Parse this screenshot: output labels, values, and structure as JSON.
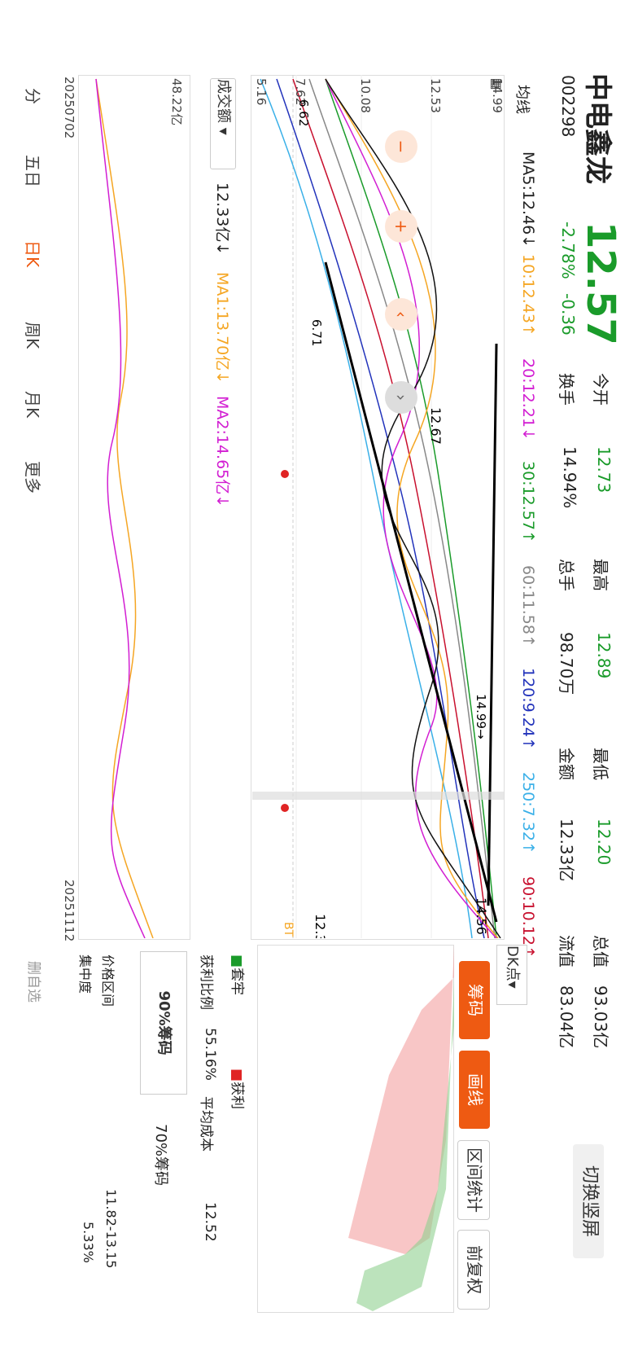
{
  "stock": {
    "name": "中电鑫龙",
    "code": "002298",
    "price": "12.57",
    "change_pct": "-2.78%",
    "change_abs": "-0.36"
  },
  "quote": {
    "open_label": "今开",
    "open_value": "12.73",
    "high_label": "最高",
    "high_value": "12.89",
    "low_label": "最低",
    "low_value": "12.20",
    "total_label": "总值",
    "total_value": "93.03亿",
    "turnover_label": "换手",
    "turnover_value": "14.94%",
    "volume_label": "总手",
    "volume_value": "98.70万",
    "amount_label": "金额",
    "amount_value": "12.33亿",
    "float_label": "流值",
    "float_value": "83.04亿"
  },
  "switch_button": "切换竖屏",
  "ma_bar": {
    "indicator": "均线",
    "ma5": "MA5:12.46↓",
    "ma10": "10:12.43↑",
    "ma20": "20:12.21↓",
    "ma30": "30:12.57↑",
    "ma60": "60:11.58↑",
    "ma120": "120:9.24↑",
    "ma250": "250:7.32↑",
    "ma90": "90:10.12↑"
  },
  "price_axis": [
    "14.99",
    "12.53",
    "10.08",
    "7.62",
    "5.16"
  ],
  "annotations": {
    "peak": "12.67",
    "high_mark": "14.99→",
    "right_mark": "14.56",
    "low_mark": "6.71",
    "left_low": "6.62",
    "current": "12.3",
    "bt": "BT"
  },
  "volume_bar": {
    "selector": "成交额",
    "value": "12.33亿↓",
    "ma1": "MA1:13.70亿↓",
    "ma2": "MA2:14.65亿↓",
    "axis_top": "48.22亿",
    "date_start": "20250702",
    "date_end": "20251112"
  },
  "right_panel": {
    "dk_label": "DK点",
    "tab_chips": "筹码",
    "tab_draw": "画线",
    "tab_stats": "区间统计",
    "tab_adjust": "前复权",
    "legend_trapped": "套牢",
    "legend_profit": "获利",
    "profit_ratio_label": "获利比例",
    "profit_ratio_value": "55.16%",
    "avg_cost_label": "平均成本",
    "avg_cost_value": "12.52",
    "chip90": "90%筹码",
    "chip70": "70%筹码",
    "range_label": "价格区间",
    "range_value": "11.82-13.15",
    "concentration_label": "集中度",
    "concentration_value": "5.33%"
  },
  "toolbar": {
    "items": [
      "分",
      "五日",
      "日K",
      "周K",
      "月K",
      "更多"
    ],
    "draw_labels": [
      "删自选"
    ]
  },
  "colors": {
    "up": "#e02424",
    "down": "#1a9b2a",
    "accent": "#ee5a12"
  },
  "chart_data": {
    "type": "candlestick",
    "ylim": [
      5.16,
      14.99
    ],
    "ma_legend": [
      "MA5",
      "10",
      "20",
      "30",
      "60",
      "120",
      "250",
      "90"
    ]
  }
}
